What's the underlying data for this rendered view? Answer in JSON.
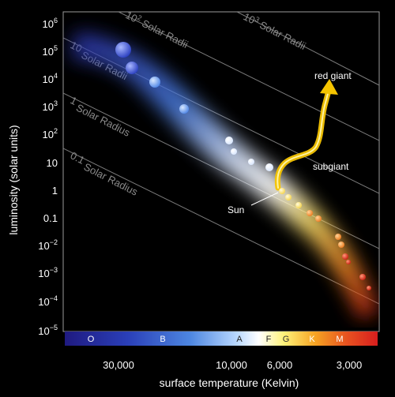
{
  "diagram": {
    "y_axis_label": "luminosity (solar units)",
    "x_axis_label": "surface temperature (Kelvin)",
    "y_ticks": [
      {
        "base": "10",
        "exp": "6"
      },
      {
        "base": "10",
        "exp": "5"
      },
      {
        "base": "10",
        "exp": "4"
      },
      {
        "base": "10",
        "exp": "3"
      },
      {
        "base": "10",
        "exp": "2"
      },
      {
        "base": "10",
        "exp": ""
      },
      {
        "base": "1",
        "exp": ""
      },
      {
        "base": "0.1",
        "exp": ""
      },
      {
        "base": "10",
        "exp": "−2"
      },
      {
        "base": "10",
        "exp": "−3"
      },
      {
        "base": "10",
        "exp": "−4"
      },
      {
        "base": "10",
        "exp": "−5"
      }
    ],
    "x_ticks": [
      "30,000",
      "10,000",
      "6,000",
      "3,000"
    ],
    "spectral_classes": [
      "O",
      "B",
      "A",
      "F",
      "G",
      "K",
      "M"
    ],
    "radius_lines": [
      {
        "base": "10",
        "exp": "3",
        "suffix": " Solar Radii"
      },
      {
        "base": "10",
        "exp": "2",
        "suffix": " Solar Radii"
      },
      {
        "base": "10",
        "exp": "",
        "suffix": " Solar Radii"
      },
      {
        "base": "1",
        "exp": "",
        "suffix": " Solar Radius"
      },
      {
        "base": "0.1",
        "exp": "",
        "suffix": " Solar Radius"
      }
    ],
    "annotations": {
      "red_giant": "red giant",
      "subgiant": "subgiant",
      "sun": "Sun"
    },
    "colors": {
      "background": "#000000",
      "track_arrow": "#f5c400",
      "o_star": "#3a4fd0",
      "b_star": "#7aa8ff",
      "a_star": "#f4f8ff",
      "g_star": "#fff06a",
      "k_star": "#ff9a2a",
      "m_star": "#e0301c"
    }
  }
}
